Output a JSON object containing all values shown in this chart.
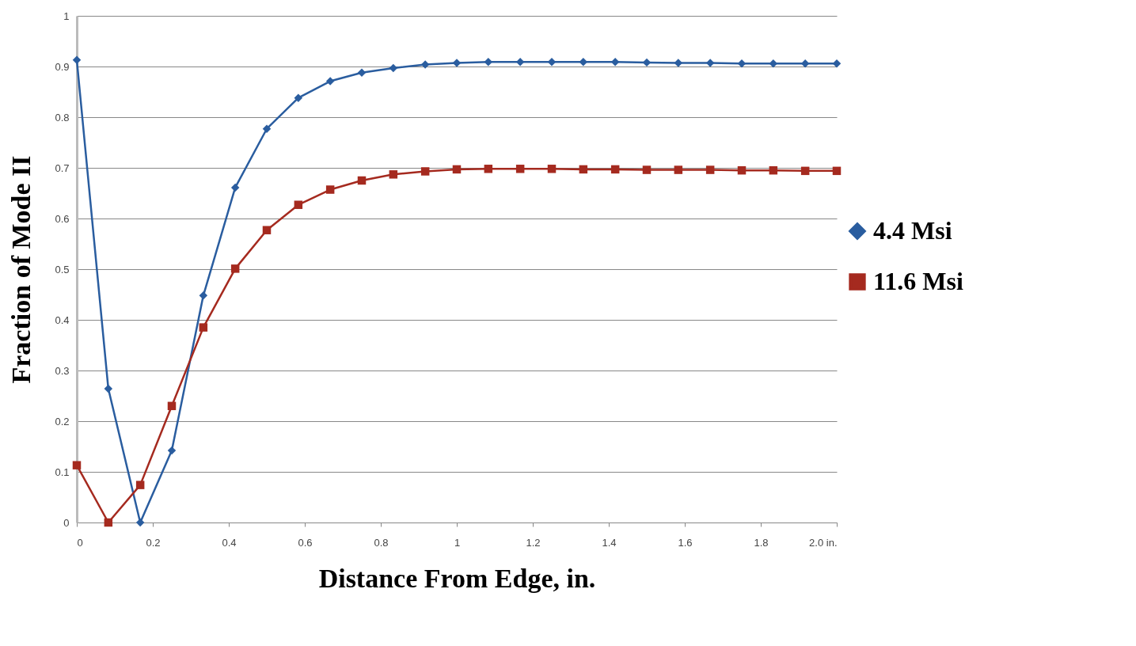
{
  "chart_data": {
    "type": "line",
    "xlabel": "Distance From Edge, in.",
    "ylabel": "Fraction of Mode II",
    "xlim": [
      0,
      2
    ],
    "ylim": [
      0,
      1
    ],
    "xticks": [
      0,
      0.2,
      0.4,
      0.6,
      0.8,
      1,
      1.2,
      1.4,
      1.6,
      1.8,
      {
        "value": 2,
        "label": "2.0 in."
      }
    ],
    "yticks": [
      0,
      0.1,
      0.2,
      0.3,
      0.4,
      0.5,
      0.6,
      0.7,
      0.8,
      0.9,
      1
    ],
    "grid": "y",
    "legend": "right",
    "line_style": "solid",
    "x": [
      0,
      0.083,
      0.167,
      0.25,
      0.333,
      0.417,
      0.5,
      0.583,
      0.667,
      0.75,
      0.833,
      0.917,
      1,
      1.083,
      1.167,
      1.25,
      1.333,
      1.417,
      1.5,
      1.583,
      1.667,
      1.75,
      1.833,
      1.917,
      2
    ],
    "series": [
      {
        "name": "4.4 Msi",
        "color": "#2a5d9f",
        "marker": "diamond",
        "values": [
          0.913,
          0.264,
          0,
          0.142,
          0.448,
          0.661,
          0.777,
          0.838,
          0.871,
          0.888,
          0.897,
          0.904,
          0.907,
          0.909,
          0.909,
          0.909,
          0.909,
          0.909,
          0.908,
          0.907,
          0.907,
          0.906,
          0.906,
          0.906,
          0.906
        ]
      },
      {
        "name": "11.6 Msi",
        "color": "#a52a1f",
        "marker": "square",
        "values": [
          0.113,
          0,
          0.074,
          0.23,
          0.385,
          0.501,
          0.577,
          0.627,
          0.657,
          0.675,
          0.687,
          0.693,
          0.697,
          0.698,
          0.698,
          0.698,
          0.697,
          0.697,
          0.696,
          0.696,
          0.696,
          0.695,
          0.695,
          0.694,
          0.694
        ]
      }
    ]
  }
}
